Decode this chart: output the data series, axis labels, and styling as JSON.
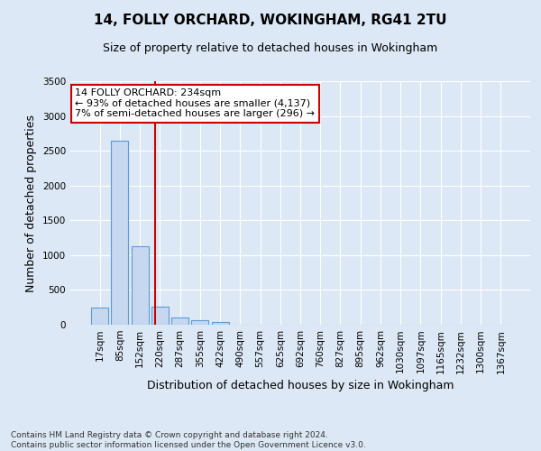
{
  "title1": "14, FOLLY ORCHARD, WOKINGHAM, RG41 2TU",
  "title2": "Size of property relative to detached houses in Wokingham",
  "xlabel": "Distribution of detached houses by size in Wokingham",
  "ylabel": "Number of detached properties",
  "footnote": "Contains HM Land Registry data © Crown copyright and database right 2024.\nContains public sector information licensed under the Open Government Licence v3.0.",
  "bar_labels": [
    "17sqm",
    "85sqm",
    "152sqm",
    "220sqm",
    "287sqm",
    "355sqm",
    "422sqm",
    "490sqm",
    "557sqm",
    "625sqm",
    "692sqm",
    "760sqm",
    "827sqm",
    "895sqm",
    "962sqm",
    "1030sqm",
    "1097sqm",
    "1165sqm",
    "1232sqm",
    "1300sqm",
    "1367sqm"
  ],
  "bar_values": [
    250,
    2650,
    1130,
    265,
    100,
    60,
    40,
    0,
    0,
    0,
    0,
    0,
    0,
    0,
    0,
    0,
    0,
    0,
    0,
    0,
    0
  ],
  "bar_color": "#c5d8f0",
  "bar_edge_color": "#5b9bd5",
  "property_label": "14 FOLLY ORCHARD: 234sqm",
  "annotation_line1": "← 93% of detached houses are smaller (4,137)",
  "annotation_line2": "7% of semi-detached houses are larger (296) →",
  "vline_color": "#cc0000",
  "vline_x": 2.74,
  "ylim": [
    0,
    3500
  ],
  "yticks": [
    0,
    500,
    1000,
    1500,
    2000,
    2500,
    3000,
    3500
  ],
  "bg_color": "#dce8f5",
  "grid_color": "#ffffff",
  "annotation_box_color": "#ffffff",
  "annotation_box_edge": "#cc0000",
  "title1_fontsize": 11,
  "title2_fontsize": 9,
  "ylabel_fontsize": 9,
  "xlabel_fontsize": 9,
  "tick_fontsize": 7.5,
  "footnote_fontsize": 6.5
}
